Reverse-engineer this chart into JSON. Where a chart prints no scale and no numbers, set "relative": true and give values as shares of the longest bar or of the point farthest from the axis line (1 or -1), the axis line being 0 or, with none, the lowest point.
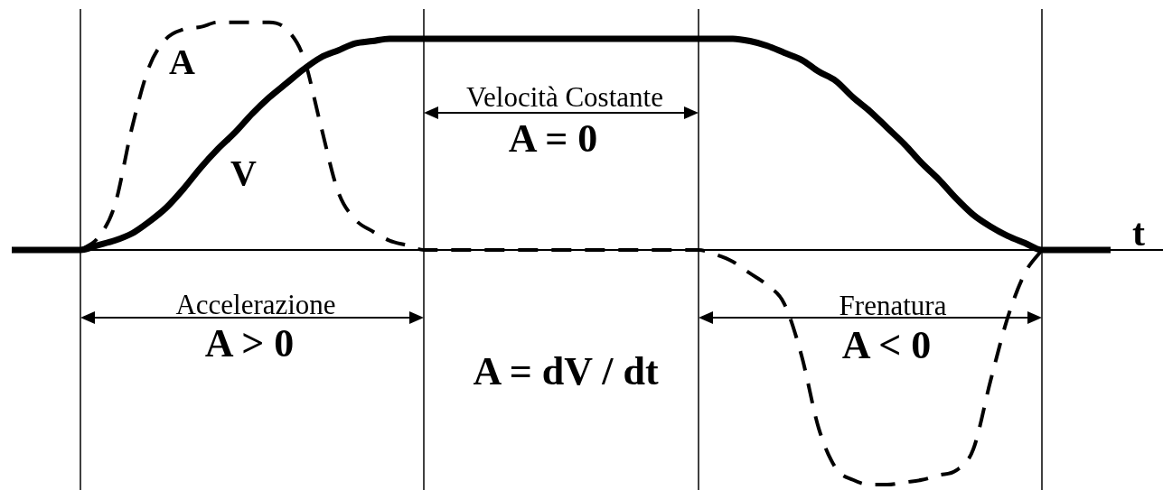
{
  "chart_data": {
    "type": "line",
    "xlabel": "t",
    "relative": true,
    "marker": "none",
    "grid": "x",
    "categories": [
      null,
      null,
      null,
      null,
      null,
      null,
      null,
      null,
      null,
      null,
      null,
      null,
      null,
      null,
      null,
      null,
      null,
      null,
      null,
      null,
      null,
      null,
      null,
      null,
      null,
      null,
      null,
      null,
      null,
      null,
      null,
      null,
      null,
      null,
      null,
      null,
      null,
      null,
      null,
      null,
      null,
      null,
      null,
      null,
      null,
      null,
      null,
      null,
      null,
      null,
      null,
      null,
      null,
      null,
      null,
      null,
      null,
      null,
      null,
      null,
      null,
      null,
      null,
      null,
      null
    ],
    "series": [
      {
        "name": "V",
        "color": "#000000",
        "line_style": "solid",
        "values": [
          0,
          0,
          0,
          0,
          0,
          0.02,
          0.04,
          0.07,
          0.12,
          0.18,
          0.26,
          0.35,
          0.43,
          0.5,
          0.58,
          0.65,
          0.71,
          0.77,
          0.82,
          0.85,
          0.88,
          0.89,
          0.9,
          0.9,
          0.9,
          0.9,
          0.9,
          0.9,
          0.9,
          0.9,
          0.9,
          0.9,
          0.9,
          0.9,
          0.9,
          0.9,
          0.9,
          0.9,
          0.9,
          0.9,
          0.9,
          0.9,
          0.9,
          0.89,
          0.87,
          0.84,
          0.81,
          0.76,
          0.72,
          0.65,
          0.59,
          0.52,
          0.45,
          0.37,
          0.3,
          0.22,
          0.15,
          0.1,
          0.06,
          0.03,
          0,
          0,
          0,
          0,
          0
        ]
      },
      {
        "name": "A",
        "color": "#000000",
        "line_style": "dashed",
        "values": [
          null,
          null,
          null,
          null,
          0,
          0.05,
          0.19,
          0.52,
          0.78,
          0.9,
          0.94,
          0.95,
          0.97,
          0.97,
          0.97,
          0.97,
          0.94,
          0.82,
          0.53,
          0.25,
          0.13,
          0.08,
          0.04,
          0.02,
          0,
          0,
          0,
          0,
          0,
          0,
          0,
          0,
          0,
          0,
          0,
          0,
          0,
          0,
          0,
          0,
          0,
          -0.02,
          -0.05,
          -0.1,
          -0.15,
          -0.23,
          -0.45,
          -0.76,
          -0.93,
          -0.98,
          -1,
          -1,
          -0.99,
          -0.98,
          -0.96,
          -0.94,
          -0.85,
          -0.56,
          -0.29,
          -0.1,
          0,
          null,
          null,
          null,
          null
        ]
      }
    ],
    "annotations": [
      "Velocità Costante",
      "A = 0",
      "Accelerazione",
      "A > 0",
      "Frenatura",
      "A < 0",
      "A = dV / dt"
    ]
  }
}
